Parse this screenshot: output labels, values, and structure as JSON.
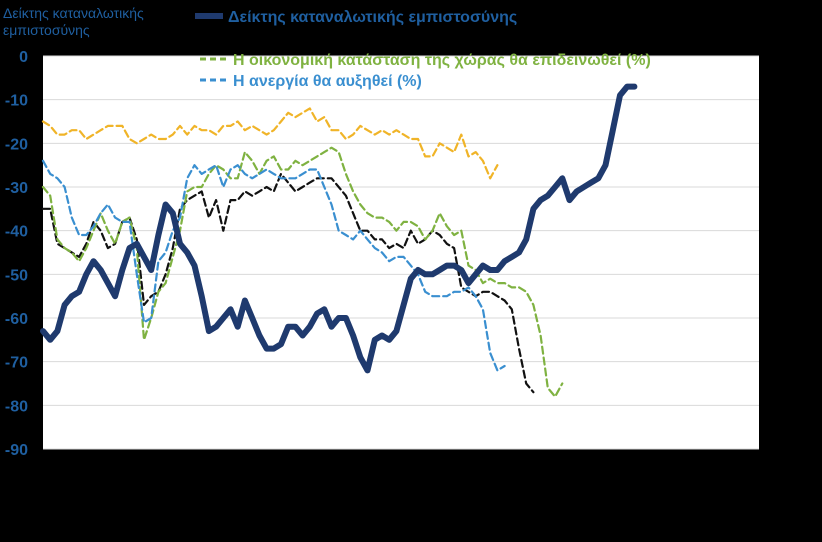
{
  "chart_data": {
    "type": "line",
    "ylabel": "Δείκτης καταναλωτικής εμπιστοσύνης",
    "ylim": [
      -90,
      0
    ],
    "yticks": [
      0,
      -10,
      -20,
      -30,
      -40,
      -50,
      -60,
      -70,
      -80,
      -90
    ],
    "grid": true,
    "legend_position": "top",
    "x_count": 100,
    "series": [
      {
        "name": "Δείκτης καταναλωτικής εμπιστοσύνης",
        "color": "#1f3a6e",
        "style": "solid",
        "values": [
          -63,
          -65,
          -63,
          -57,
          -55,
          -54,
          -50,
          -47,
          -49,
          -52,
          -55,
          -49,
          -44,
          -43,
          -46,
          -49,
          -41,
          -34,
          -36,
          -43,
          -45,
          -48,
          -55,
          -63,
          -62,
          -60,
          -58,
          -62,
          -56,
          -60,
          -64,
          -67,
          -67,
          -66,
          -62,
          -62,
          -64,
          -62,
          -59,
          -58,
          -62,
          -60,
          -60,
          -64,
          -69,
          -72,
          -65,
          -64,
          -65,
          -63,
          -57,
          -51,
          -49,
          -50,
          -50,
          -49,
          -48,
          -48,
          -49,
          -52,
          -50,
          -48,
          -49,
          -49,
          -47,
          -46,
          -45,
          -42,
          -35,
          -33,
          -32,
          -30,
          -28,
          -33,
          -31,
          -30,
          -29,
          -28,
          -25,
          -17,
          -9,
          -7,
          -7
        ],
        "x_start": 0
      },
      {
        "name": "Η οικονομική κατάσταση της χώρας θα επιδεινωθεί (%)",
        "color": "#7fb241",
        "style": "dashed",
        "values": [
          -30,
          -32,
          -42,
          -44,
          -45,
          -47,
          -44,
          -40,
          -36,
          -40,
          -43,
          -38,
          -37,
          -44,
          -65,
          -60,
          -54,
          -52,
          -46,
          -40,
          -31,
          -30,
          -30,
          -27,
          -25,
          -26,
          -28,
          -28,
          -22,
          -24,
          -27,
          -24,
          -23,
          -26,
          -26,
          -24,
          -25,
          -24,
          -23,
          -22,
          -21,
          -22,
          -27,
          -31,
          -34,
          -36,
          -37,
          -37,
          -38,
          -40,
          -38,
          -38,
          -39,
          -42,
          -40,
          -36,
          -39,
          -41,
          -40,
          -48,
          -49,
          -52,
          -51,
          -52,
          -52,
          -53,
          -53,
          -54,
          -57,
          -64,
          -76,
          -78,
          -75
        ],
        "x_start": 0
      },
      {
        "name": "Η ανεργία θα αυξηθεί (%)",
        "color": "#3a8fd0",
        "style": "dashed",
        "values": [
          -24,
          -27,
          -28,
          -30,
          -37,
          -41,
          -41,
          -39,
          -36,
          -34,
          -37,
          -38,
          -38,
          -50,
          -61,
          -60,
          -47,
          -45,
          -40,
          -37,
          -28,
          -25,
          -27,
          -26,
          -25,
          -30,
          -26,
          -25,
          -27,
          -28,
          -27,
          -26,
          -27,
          -28,
          -28,
          -28,
          -27,
          -26,
          -26,
          -30,
          -34,
          -40,
          -41,
          -42,
          -40,
          -42,
          -44,
          -45,
          -47,
          -46,
          -46,
          -48,
          -50,
          -54,
          -55,
          -55,
          -55,
          -54,
          -54,
          -53,
          -55,
          -58,
          -68,
          -72,
          -71
        ],
        "x_start": 0
      },
      {
        "name": "",
        "color": "#f0b428",
        "style": "dashed",
        "values": [
          -15,
          -16,
          -18,
          -18,
          -17,
          -17,
          -19,
          -18,
          -17,
          -16,
          -16,
          -16,
          -19,
          -20,
          -19,
          -18,
          -19,
          -19,
          -18,
          -16,
          -18,
          -16,
          -17,
          -17,
          -18,
          -16,
          -16,
          -15,
          -17,
          -16,
          -17,
          -18,
          -17,
          -15,
          -13,
          -14,
          -13,
          -12,
          -15,
          -14,
          -17,
          -17,
          -19,
          -18,
          -16,
          -17,
          -18,
          -17,
          -18,
          -17,
          -18,
          -19,
          -19,
          -23,
          -23,
          -20,
          -21,
          -22,
          -18,
          -23,
          -22,
          -24,
          -28,
          -25
        ],
        "x_start": 0
      },
      {
        "name": "",
        "color": "#111111",
        "style": "dashed",
        "values": [
          -35,
          -35,
          -43,
          -44,
          -45,
          -46,
          -43,
          -38,
          -40,
          -44,
          -43,
          -38,
          -37,
          -42,
          -57,
          -55,
          -54,
          -50,
          -44,
          -35,
          -33,
          -32,
          -31,
          -37,
          -33,
          -40,
          -33,
          -33,
          -31,
          -32,
          -31,
          -30,
          -31,
          -27,
          -29,
          -31,
          -30,
          -29,
          -28,
          -28,
          -28,
          -30,
          -32,
          -36,
          -40,
          -40,
          -42,
          -42,
          -44,
          -43,
          -44,
          -40,
          -43,
          -42,
          -40,
          -41,
          -43,
          -44,
          -53,
          -54,
          -55,
          -54,
          -54,
          -55,
          -56,
          -58,
          -67,
          -75,
          -77
        ],
        "x_start": 0
      }
    ]
  }
}
